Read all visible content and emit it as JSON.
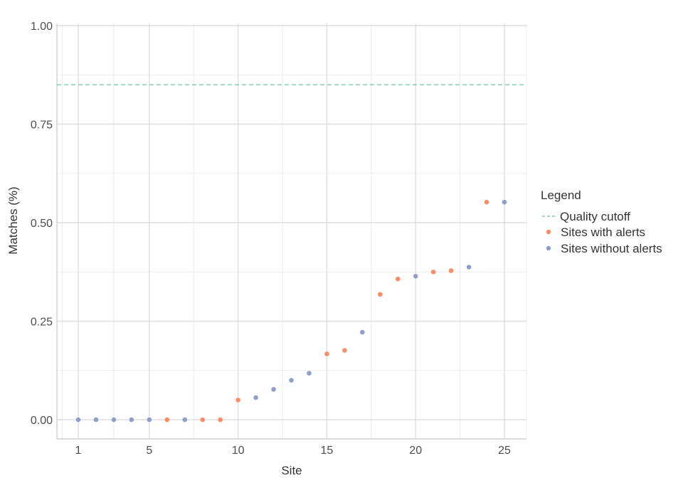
{
  "chart_data": {
    "type": "scatter",
    "title": "",
    "xlabel": "Site",
    "ylabel": "Matches (%)",
    "xlim": [
      0,
      26.2
    ],
    "ylim": [
      -0.05,
      1.0
    ],
    "x_ticks": [
      1,
      5,
      10,
      15,
      20,
      25
    ],
    "y_ticks": [
      0.0,
      0.25,
      0.5,
      0.75,
      1.0
    ],
    "y_tick_labels": [
      "0.00",
      "0.25",
      "0.50",
      "0.75",
      "1.00"
    ],
    "grid": true,
    "legend_placement": "right",
    "legend": {
      "title": "Legend",
      "entries": [
        "Quality cutoff",
        "Sites with alerts",
        "Sites without alerts"
      ]
    },
    "reference_line": {
      "name": "Quality cutoff",
      "y": 0.85,
      "color": "#66c2a5",
      "style": "dashed"
    },
    "series": [
      {
        "name": "Sites with alerts",
        "color": "#fc8d62",
        "x": [
          6,
          8,
          9,
          10,
          15,
          16,
          18,
          19,
          21,
          22,
          24
        ],
        "y": [
          0.0,
          0.0,
          0.0,
          0.05,
          0.167,
          0.176,
          0.318,
          0.357,
          0.375,
          0.378,
          0.552
        ]
      },
      {
        "name": "Sites without alerts",
        "color": "#8da0cb",
        "x": [
          1,
          2,
          3,
          4,
          5,
          7,
          11,
          12,
          13,
          14,
          17,
          20,
          23,
          25
        ],
        "y": [
          0.0,
          0.0,
          0.0,
          0.0,
          0.0,
          0.0,
          0.056,
          0.077,
          0.1,
          0.118,
          0.222,
          0.364,
          0.387,
          0.552
        ]
      }
    ]
  }
}
